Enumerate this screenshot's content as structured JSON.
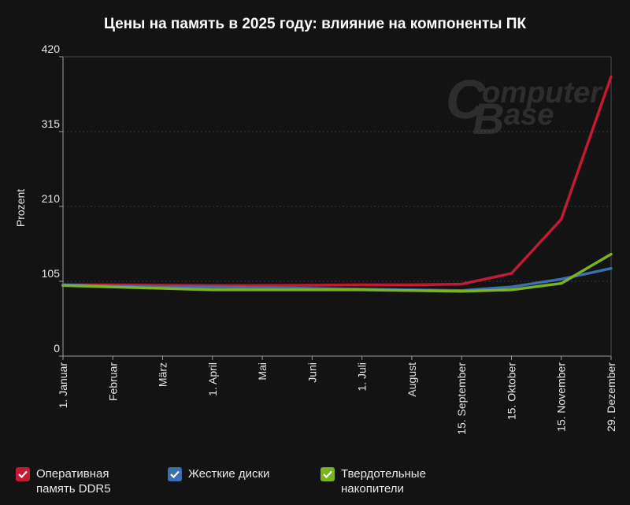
{
  "title": "Цены на память в 2025 году: влияние на компоненты ПК",
  "watermark": {
    "line1": "omputer",
    "line2": "ase",
    "letter1": "C",
    "letter2": "B"
  },
  "colors": {
    "background": "#131313",
    "ram": "#c21a35",
    "hdd": "#3b6fb0",
    "ssd": "#7bb21f",
    "grid": "#3a3a3a",
    "axis": "#9a9a9a"
  },
  "chart_data": {
    "type": "line",
    "title": "Цены на память в 2025 году: влияние на компоненты ПК",
    "xlabel": "",
    "ylabel": "Prozent",
    "ylim": [
      0,
      420
    ],
    "yticks": [
      0,
      105,
      210,
      315,
      420
    ],
    "grid": true,
    "legend_position": "bottom",
    "categories": [
      "1. Januar",
      "Februar",
      "März",
      "1. April",
      "Mai",
      "Juni",
      "1. Juli",
      "August",
      "15. September",
      "15. Oktober",
      "15. November",
      "29. Dezember"
    ],
    "series": [
      {
        "name": "Оперативная память DDR5",
        "color": "#c21a35",
        "values": [
          100,
          100,
          99.5,
          99,
          99,
          99.5,
          100,
          100,
          101,
          116,
          192,
          392
        ]
      },
      {
        "name": "Жесткие диски",
        "color": "#3b6fb0",
        "values": [
          100,
          98,
          97,
          97,
          96,
          95,
          94,
          93,
          92,
          97,
          108,
          123
        ]
      },
      {
        "name": "Твердотельные накопители",
        "color": "#7bb21f",
        "values": [
          99,
          97,
          95,
          93,
          93,
          93,
          93,
          92,
          91,
          93,
          102,
          143
        ]
      }
    ]
  },
  "legend": [
    {
      "label_line1": "Оперативная",
      "label_line2": "память DDR5"
    },
    {
      "label_line1": "Жесткие диски",
      "label_line2": ""
    },
    {
      "label_line1": "Твердотельные",
      "label_line2": "накопители"
    }
  ]
}
